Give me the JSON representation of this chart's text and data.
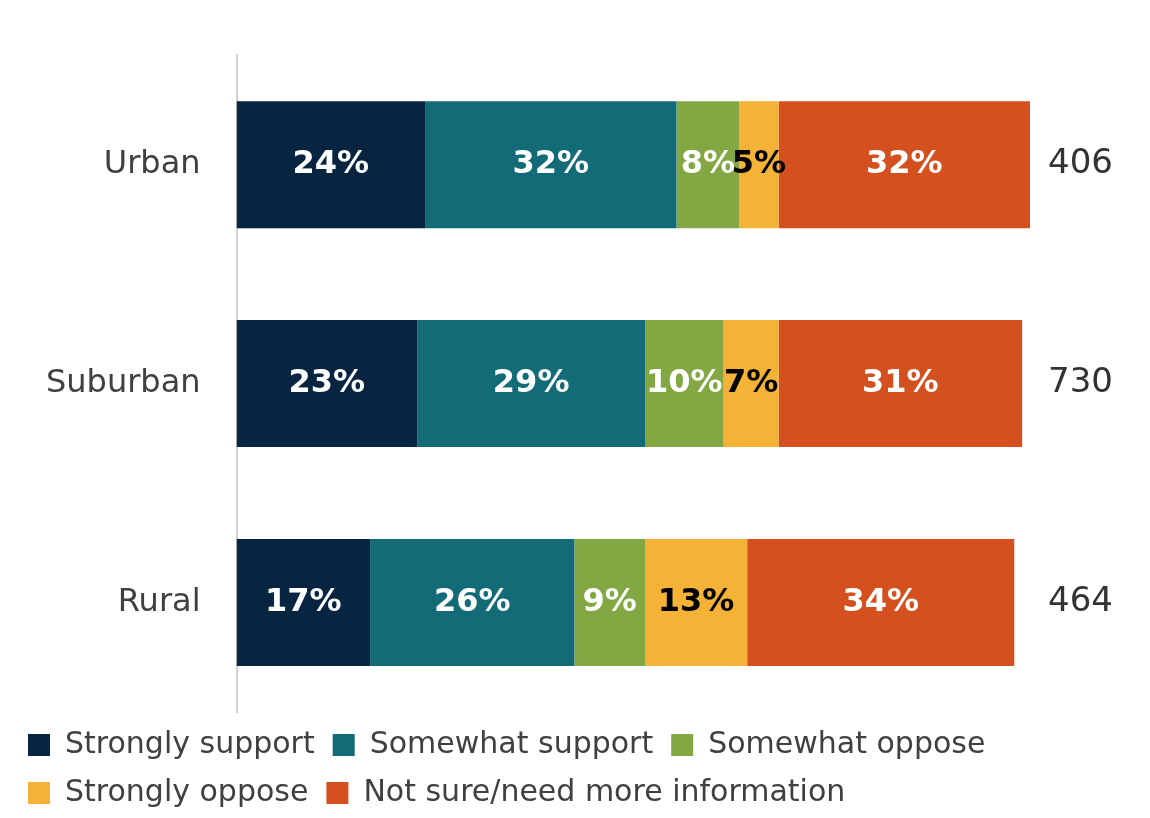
{
  "chart_data": {
    "type": "bar",
    "orientation": "horizontal",
    "stacked": true,
    "legend": "bottom",
    "xlim": [
      0,
      101
    ],
    "categories": [
      "Urban",
      "Suburban",
      "Rural"
    ],
    "series": [
      {
        "name": "Strongly support",
        "color": "#072540",
        "values": [
          24,
          23,
          17
        ],
        "value_labels": [
          "24%",
          "23%",
          "17%"
        ]
      },
      {
        "name": "Somewhat support",
        "color": "#126b76",
        "values": [
          32,
          29,
          26
        ],
        "value_labels": [
          "32%",
          "29%",
          "26%"
        ]
      },
      {
        "name": "Somewhat oppose",
        "color": "#83a843",
        "values": [
          8,
          10,
          9
        ],
        "value_labels": [
          "8%",
          "10%",
          "9%"
        ]
      },
      {
        "name": "Strongly oppose",
        "color": "#f4b236",
        "values": [
          5,
          7,
          13
        ],
        "value_labels": [
          "5%",
          "7%",
          "13%"
        ]
      },
      {
        "name": "Not sure/need more information",
        "color": "#d4501f",
        "values": [
          32,
          31,
          34
        ],
        "value_labels": [
          "32%",
          "31%",
          "34%"
        ]
      }
    ],
    "annotations": [
      "406",
      "730",
      "464"
    ]
  }
}
